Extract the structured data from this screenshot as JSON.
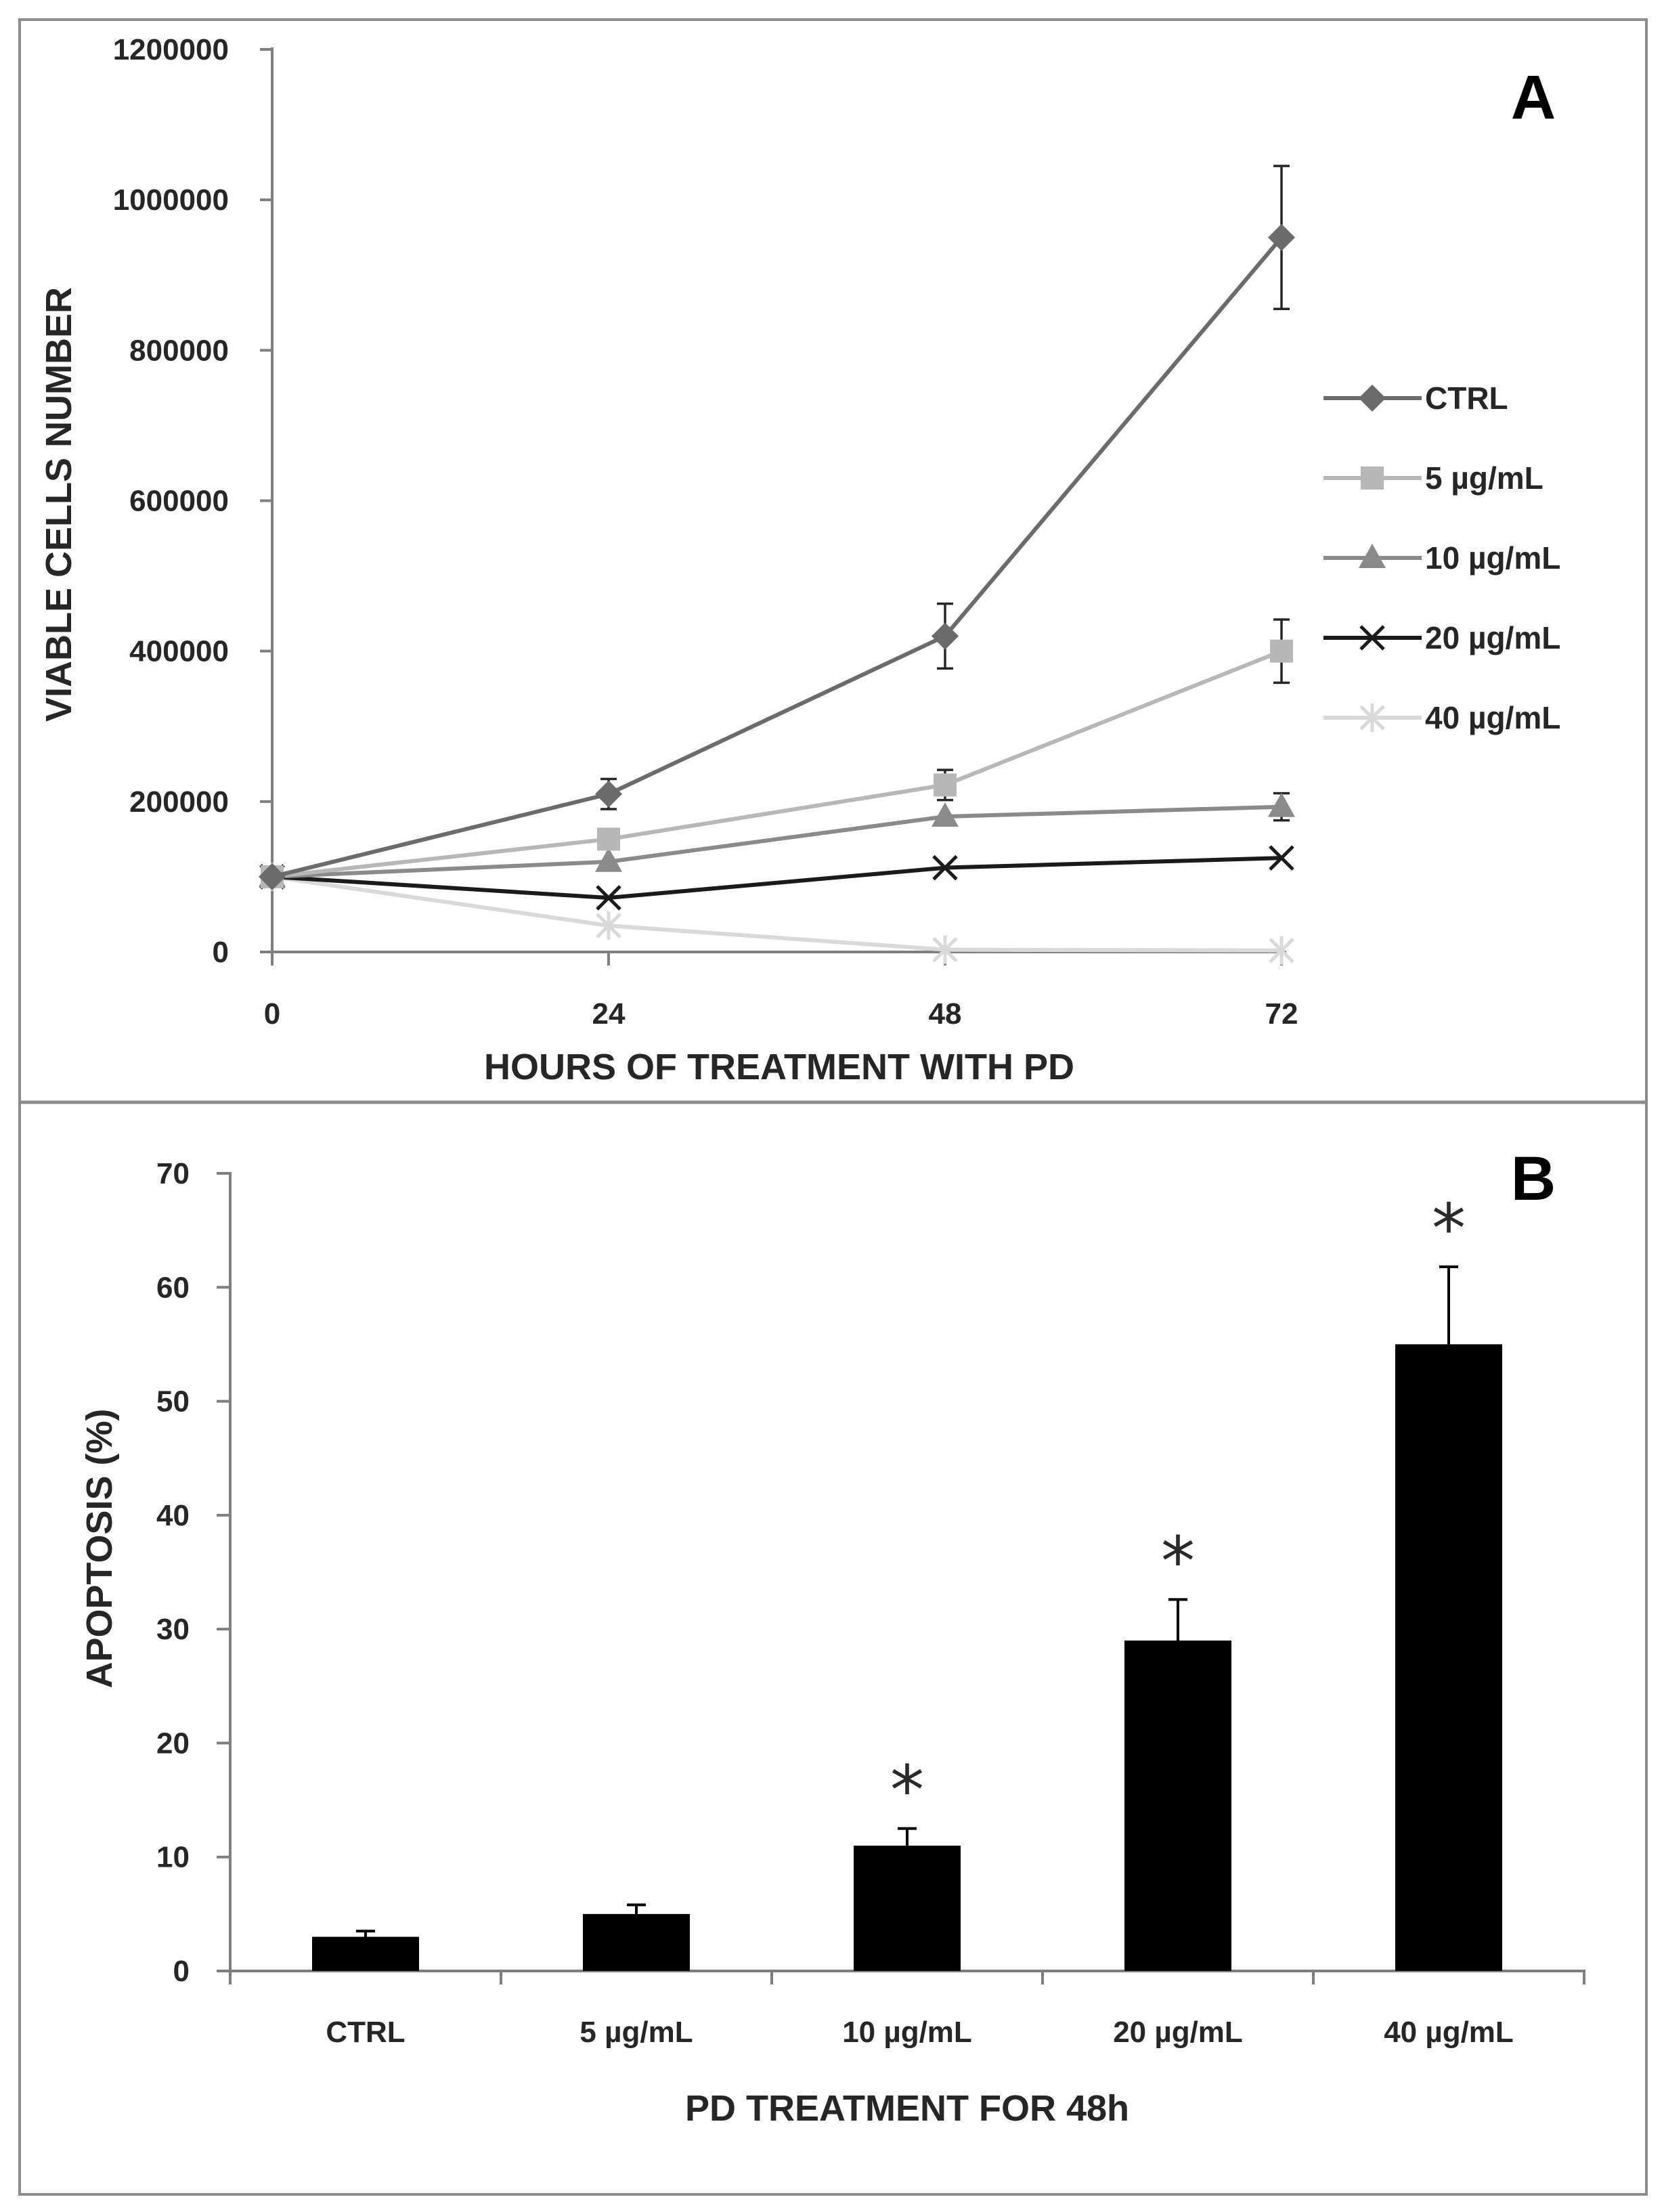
{
  "chart_data": [
    {
      "panel": "A",
      "type": "line",
      "xlabel": "HOURS OF TREATMENT WITH PD",
      "ylabel": "VIABLE CELLS NUMBER",
      "x": [
        0,
        24,
        48,
        72
      ],
      "xticks": [
        "0",
        "24",
        "48",
        "72"
      ],
      "ylim": [
        0,
        1200000
      ],
      "yticks": [
        "0",
        "200000",
        "400000",
        "600000",
        "800000",
        "1000000",
        "1200000"
      ],
      "legend_position": "right",
      "series": [
        {
          "name": "CTRL",
          "values": [
            100000,
            210000,
            420000,
            950000
          ],
          "errors": [
            0,
            20000,
            43000,
            95000
          ],
          "color": "#6b6b6b",
          "marker": "diamond"
        },
        {
          "name": "5 µg/mL",
          "values": [
            100000,
            150000,
            222000,
            400000
          ],
          "errors": [
            0,
            0,
            20000,
            42000
          ],
          "color": "#b7b7b7",
          "marker": "square"
        },
        {
          "name": "10 µg/mL",
          "values": [
            100000,
            120000,
            180000,
            193000
          ],
          "errors": [
            0,
            0,
            0,
            18000
          ],
          "color": "#8a8a8a",
          "marker": "triangle"
        },
        {
          "name": "20 µg/mL",
          "values": [
            100000,
            72000,
            112000,
            125000
          ],
          "errors": [
            0,
            0,
            0,
            0
          ],
          "color": "#1a1a1a",
          "marker": "x"
        },
        {
          "name": "40 µg/mL",
          "values": [
            100000,
            35000,
            3000,
            2000
          ],
          "errors": [
            0,
            0,
            0,
            0
          ],
          "color": "#d9d9d9",
          "marker": "asterisk"
        }
      ]
    },
    {
      "panel": "B",
      "type": "bar",
      "xlabel": "PD TREATMENT FOR 48h",
      "ylabel": "APOPTOSIS  (%)",
      "categories": [
        "CTRL",
        "5 µg/mL",
        "10 µg/mL",
        "20 µg/mL",
        "40 µg/mL"
      ],
      "values": [
        3,
        5,
        11,
        29,
        55
      ],
      "errors": [
        0.5,
        0.8,
        1.5,
        3.6,
        6.8
      ],
      "significance": [
        "",
        "",
        "*",
        "*",
        "*"
      ],
      "ylim": [
        0,
        70
      ],
      "yticks": [
        "0",
        "10",
        "20",
        "30",
        "40",
        "50",
        "60",
        "70"
      ],
      "bar_color": "#000000"
    }
  ]
}
